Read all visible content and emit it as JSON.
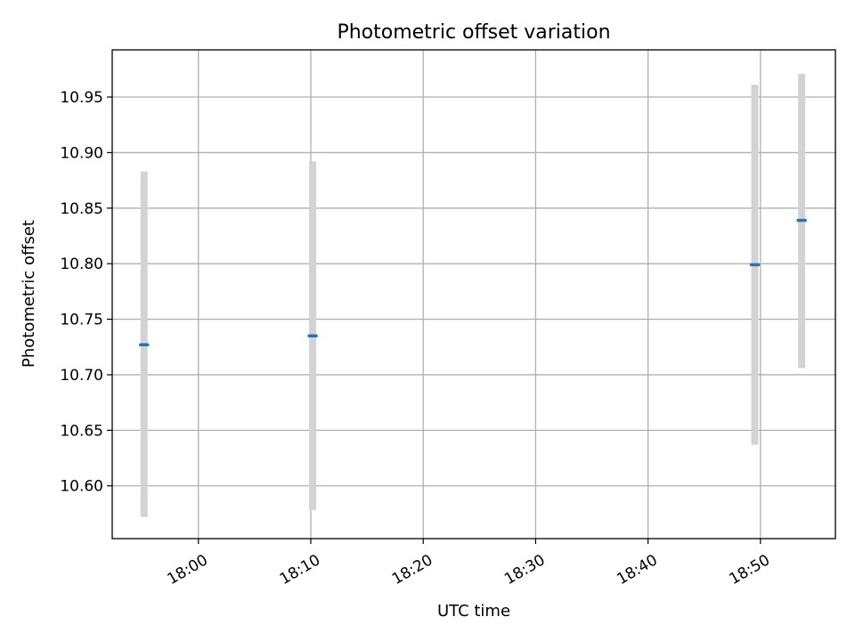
{
  "chart_data": {
    "type": "scatter",
    "title": "Photometric offset variation",
    "xlabel": "UTC time",
    "ylabel": "Photometric offset",
    "x_unit": "time of day",
    "xlim": [
      "17:52:20",
      "18:56:40"
    ],
    "ylim": [
      10.5525,
      10.9925
    ],
    "x_ticks": [
      "18:00",
      "18:10",
      "18:20",
      "18:30",
      "18:40",
      "18:50"
    ],
    "y_ticks": [
      "10.60",
      "10.65",
      "10.70",
      "10.75",
      "10.80",
      "10.85",
      "10.90",
      "10.95"
    ],
    "grid": true,
    "colors": {
      "point": "#1f77b4",
      "errorbar": "#d3d3d3"
    },
    "points": [
      {
        "x": "17:55:10",
        "y": 10.727,
        "yerr_low": 10.572,
        "yerr_high": 10.883
      },
      {
        "x": "18:10:10",
        "y": 10.735,
        "yerr_low": 10.578,
        "yerr_high": 10.892
      },
      {
        "x": "18:49:30",
        "y": 10.799,
        "yerr_low": 10.637,
        "yerr_high": 10.961
      },
      {
        "x": "18:53:40",
        "y": 10.839,
        "yerr_low": 10.706,
        "yerr_high": 10.971
      }
    ]
  }
}
